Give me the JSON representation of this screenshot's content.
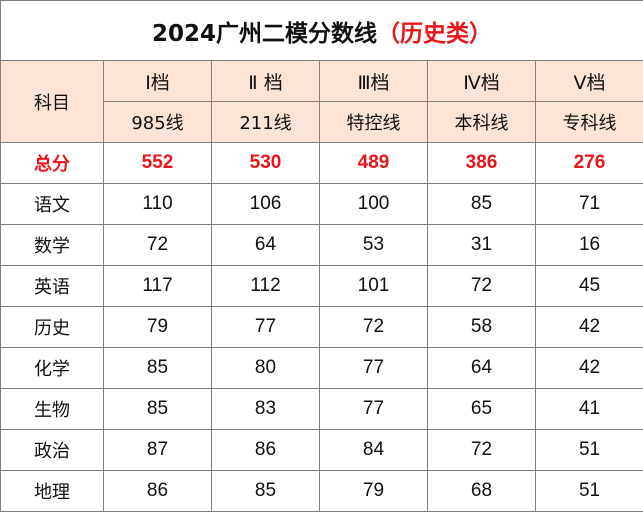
{
  "title": {
    "main": "2024广州二模分数线",
    "highlight": "（历史类）"
  },
  "subject_header": "科目",
  "levels": [
    {
      "tier": "I档",
      "line": "985线"
    },
    {
      "tier": "Ⅱ 档",
      "line": "211线"
    },
    {
      "tier": "Ⅲ档",
      "line": "特控线"
    },
    {
      "tier": "Ⅳ档",
      "line": "本科线"
    },
    {
      "tier": "Ⅴ档",
      "line": "专科线"
    }
  ],
  "total": {
    "label": "总分",
    "values": [
      "552",
      "530",
      "489",
      "386",
      "276"
    ]
  },
  "subjects": [
    {
      "name": "语文",
      "values": [
        "110",
        "106",
        "100",
        "85",
        "71"
      ]
    },
    {
      "name": "数学",
      "values": [
        "72",
        "64",
        "53",
        "31",
        "16"
      ]
    },
    {
      "name": "英语",
      "values": [
        "117",
        "112",
        "101",
        "72",
        "45"
      ]
    },
    {
      "name": "历史",
      "values": [
        "79",
        "77",
        "72",
        "58",
        "42"
      ]
    },
    {
      "name": "化学",
      "values": [
        "85",
        "80",
        "77",
        "64",
        "42"
      ]
    },
    {
      "name": "生物",
      "values": [
        "85",
        "83",
        "77",
        "65",
        "41"
      ]
    },
    {
      "name": "政治",
      "values": [
        "87",
        "86",
        "84",
        "72",
        "51"
      ]
    },
    {
      "name": "地理",
      "values": [
        "86",
        "85",
        "79",
        "68",
        "51"
      ]
    }
  ],
  "colors": {
    "header_bg": "#fbe3d6",
    "accent_red": "#e8151b",
    "border": "#808080"
  }
}
